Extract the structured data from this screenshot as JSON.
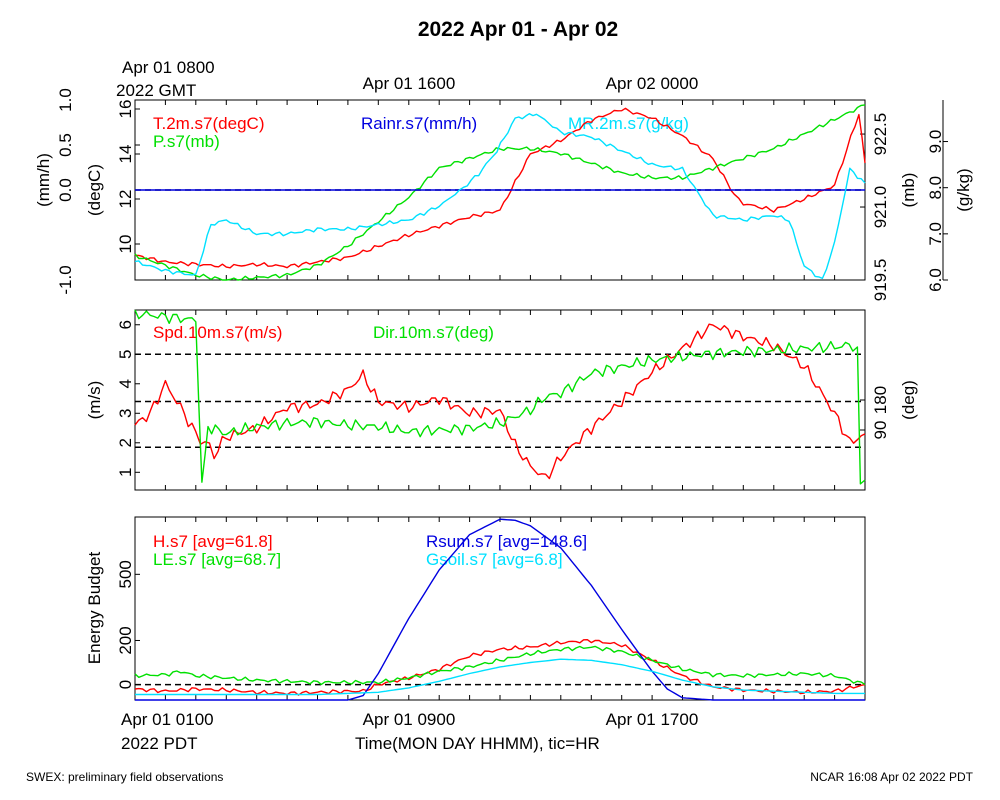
{
  "title": "2022 Apr 01 - Apr 02",
  "top_axis": {
    "labels": [
      {
        "lines": [
          "Apr 01 0800",
          "2022 GMT"
        ],
        "hour": 0
      },
      {
        "lines": [
          "Apr 01 1600"
        ],
        "hour": 8
      },
      {
        "lines": [
          "Apr 02 0000"
        ],
        "hour": 16
      }
    ]
  },
  "bottom_axis": {
    "labels": [
      {
        "lines": [
          "Apr 01 0100",
          "2022 PDT"
        ],
        "hour": 0
      },
      {
        "lines": [
          "Apr 01 0900"
        ],
        "hour": 8
      },
      {
        "lines": [
          "Apr 01 1700"
        ],
        "hour": 16
      }
    ],
    "xlabel": "Time(MON DAY HHMM), tic=HR"
  },
  "footer": {
    "left": "SWEX: preliminary field observations",
    "right": "NCAR 16:08 Apr 02 2022 PDT"
  },
  "colors": {
    "red": "#ff0000",
    "green": "#00e000",
    "blue": "#0000e0",
    "cyan": "#00e0ff",
    "black": "#000000"
  },
  "chart_data": [
    {
      "type": "line",
      "x_unit": "hours since Apr 01 0100 PDT",
      "xlim": [
        0,
        24
      ],
      "axes": {
        "rain": {
          "label": "(mm/h)",
          "ylim": [
            -1.0,
            1.0
          ],
          "ticks": [
            "-1.0",
            "0.0",
            "0.5",
            "1.0"
          ],
          "tick_values": [
            -1.0,
            0.0,
            0.5,
            1.0
          ]
        },
        "temp": {
          "label": "(degC)",
          "ylim": [
            8.4,
            16.4
          ],
          "ticks": [
            "10",
            "12",
            "14",
            "16"
          ],
          "tick_values": [
            10,
            12,
            14,
            16
          ]
        },
        "pres": {
          "label": "(mb)",
          "ylim": [
            919.5,
            923.2
          ],
          "ticks": [
            "919.5",
            "921.0",
            "922.5"
          ],
          "tick_values": [
            919.5,
            921.0,
            922.5
          ]
        },
        "mr": {
          "label": "(g/kg)",
          "ylim": [
            6.0,
            9.9
          ],
          "ticks": [
            "6.0",
            "7.0",
            "8.0",
            "9.0"
          ],
          "tick_values": [
            6.0,
            7.0,
            8.0,
            9.0
          ]
        }
      },
      "reference_lines": [
        {
          "axis": "rain",
          "value": 0.0
        }
      ],
      "series": [
        {
          "name": "T.2m.s7(degC)",
          "axis": "temp",
          "color": "#ff0000",
          "x": [
            0,
            1,
            2,
            3,
            4,
            5,
            6,
            7,
            8,
            9,
            10,
            11,
            12,
            13,
            14,
            15,
            16,
            17,
            18,
            19,
            19.7,
            20,
            21,
            22,
            23,
            23.8,
            24
          ],
          "y": [
            9.5,
            9.2,
            9.1,
            9.0,
            9.1,
            9.0,
            9.2,
            9.4,
            9.9,
            10.4,
            10.8,
            11.2,
            11.5,
            14.0,
            14.6,
            15.5,
            16.0,
            15.6,
            14.8,
            13.8,
            12.2,
            11.8,
            11.5,
            12.0,
            12.6,
            15.8,
            13.6
          ]
        },
        {
          "name": "P.s7(mb)",
          "axis": "pres",
          "color": "#00e000",
          "x": [
            0,
            1,
            2,
            3,
            4,
            5,
            6,
            7,
            8,
            9,
            10,
            11,
            12,
            13,
            14,
            15,
            16,
            17,
            18,
            19,
            20,
            21,
            22,
            23,
            24
          ],
          "y": [
            920.0,
            919.8,
            919.6,
            919.5,
            919.55,
            919.6,
            919.8,
            920.2,
            920.7,
            921.2,
            921.8,
            922.0,
            922.2,
            922.2,
            922.1,
            921.9,
            921.7,
            921.6,
            921.6,
            921.8,
            922.0,
            922.2,
            922.5,
            922.8,
            923.1
          ]
        },
        {
          "name": "Rainr.s7(mm/h)",
          "axis": "rain",
          "color": "#0000e0",
          "x": [
            0,
            24
          ],
          "y": [
            0.0,
            0.0
          ]
        },
        {
          "name": "MR.2m.s7(g/kg)",
          "axis": "mr",
          "color": "#00e0ff",
          "x": [
            0,
            1,
            2,
            2.5,
            3,
            4,
            5,
            6,
            7,
            8,
            9,
            10,
            10.8,
            11.3,
            11.9,
            12.5,
            13.2,
            14,
            15,
            16,
            17,
            18,
            19,
            20,
            21,
            21.5,
            22,
            22.6,
            23,
            23.5,
            24
          ],
          "y": [
            6.4,
            6.2,
            6.1,
            7.2,
            7.3,
            7.0,
            7.0,
            7.1,
            7.1,
            7.2,
            7.3,
            7.6,
            8.0,
            8.3,
            8.8,
            9.5,
            9.6,
            9.2,
            9.1,
            8.8,
            8.5,
            8.4,
            7.4,
            7.3,
            7.4,
            7.3,
            6.3,
            6.0,
            6.8,
            8.4,
            8.1
          ]
        }
      ]
    },
    {
      "type": "line",
      "x_unit": "hours since Apr 01 0100 PDT",
      "xlim": [
        0,
        24
      ],
      "axes": {
        "speed": {
          "label": "(m/s)",
          "ylim": [
            0.4,
            6.5
          ],
          "ticks": [
            "1",
            "2",
            "3",
            "4",
            "5",
            "6"
          ],
          "tick_values": [
            1,
            2,
            3,
            4,
            5,
            6
          ]
        },
        "dir": {
          "label": "(deg)",
          "ylim": [
            -90,
            450
          ],
          "ticks": [
            "90",
            "180"
          ],
          "tick_values": [
            90,
            180
          ]
        }
      },
      "reference_lines": [
        {
          "axis": "speed",
          "value": 5.0
        },
        {
          "axis": "speed",
          "value": 3.4
        },
        {
          "axis": "speed",
          "value": 1.85
        }
      ],
      "series": [
        {
          "name": "Spd.10m.s7(m/s)",
          "axis": "speed",
          "color": "#ff0000",
          "x": [
            0,
            0.5,
            1,
            1.5,
            2,
            2.3,
            2.6,
            3,
            4,
            5,
            6,
            7,
            7.5,
            8,
            9,
            10,
            11,
            12,
            12.5,
            13,
            13.5,
            14,
            15,
            16,
            17,
            18,
            19,
            20,
            21,
            22,
            22.5,
            23,
            23.5,
            24
          ],
          "y": [
            2.6,
            3.0,
            4.0,
            3.2,
            2.3,
            2.0,
            1.6,
            2.2,
            2.5,
            3.2,
            3.3,
            3.8,
            4.3,
            3.4,
            3.2,
            3.5,
            3.0,
            3.1,
            1.9,
            1.2,
            0.8,
            1.5,
            2.5,
            3.4,
            4.4,
            5.2,
            6.0,
            5.6,
            5.3,
            4.6,
            3.8,
            3.0,
            2.0,
            2.3
          ]
        },
        {
          "name": "Dir.10m.s7(deg)",
          "axis": "dir",
          "color": "#00e000",
          "x": [
            0,
            1,
            2,
            2.2,
            2.4,
            3,
            4,
            5,
            6,
            7,
            8,
            9,
            10,
            11,
            12,
            13,
            13.5,
            14,
            15,
            16,
            17,
            18,
            19,
            20,
            21,
            22,
            23,
            23.6,
            23.75,
            23.85,
            24
          ],
          "y": [
            440,
            430,
            420,
            -80,
            100,
            80,
            100,
            110,
            115,
            105,
            100,
            85,
            90,
            95,
            110,
            150,
            190,
            200,
            260,
            280,
            300,
            310,
            320,
            325,
            330,
            335,
            340,
            345,
            330,
            -80,
            -60
          ]
        }
      ]
    },
    {
      "type": "line",
      "x_unit": "hours since Apr 01 0100 PDT",
      "xlim": [
        0,
        24
      ],
      "axes": {
        "energy": {
          "label": "Energy Budget",
          "ylim": [
            -70,
            760
          ],
          "ticks": [
            "0",
            "200",
            "500"
          ],
          "tick_values": [
            0,
            200,
            500
          ]
        }
      },
      "reference_lines": [
        {
          "axis": "energy",
          "value": 0
        }
      ],
      "series": [
        {
          "name": "H.s7 [avg=61.8]",
          "axis": "energy",
          "color": "#ff0000",
          "x": [
            0,
            1,
            2,
            3,
            4,
            5,
            6,
            7,
            7.5,
            8,
            9,
            10,
            11,
            12,
            13,
            14,
            15,
            16,
            17,
            18,
            19,
            20,
            21,
            22,
            23,
            24
          ],
          "y": [
            -20,
            -30,
            -20,
            -25,
            -35,
            -40,
            -35,
            -30,
            -30,
            0,
            30,
            70,
            130,
            160,
            170,
            190,
            200,
            180,
            110,
            40,
            -10,
            -25,
            -30,
            -35,
            -30,
            0
          ]
        },
        {
          "name": "LE.s7 [avg=68.7]",
          "axis": "energy",
          "color": "#00e000",
          "x": [
            0,
            1,
            1.5,
            2,
            3,
            4,
            5,
            6,
            7,
            8,
            9,
            10,
            11,
            12,
            13,
            14,
            15,
            16,
            17,
            18,
            19,
            20,
            21,
            22,
            23,
            24
          ],
          "y": [
            40,
            45,
            60,
            40,
            30,
            20,
            15,
            10,
            10,
            10,
            30,
            60,
            80,
            110,
            140,
            160,
            170,
            150,
            110,
            70,
            45,
            40,
            45,
            50,
            40,
            0
          ]
        },
        {
          "name": "Rsum.s7 [avg=148.6]",
          "axis": "energy",
          "color": "#0000e0",
          "x": [
            0,
            6,
            7,
            7.5,
            8,
            9,
            10,
            11,
            12,
            12.5,
            13,
            14,
            15,
            16,
            17,
            17.5,
            18,
            19,
            24
          ],
          "y": [
            -70,
            -70,
            -70,
            -50,
            50,
            300,
            520,
            680,
            750,
            745,
            720,
            620,
            450,
            250,
            60,
            -20,
            -60,
            -70,
            -70
          ]
        },
        {
          "name": "Gsoil.s7 [avg=6.8]",
          "axis": "energy",
          "color": "#00e0ff",
          "x": [
            0,
            2,
            4,
            6,
            7,
            8,
            9,
            10,
            11,
            12,
            13,
            14,
            15,
            16,
            17,
            18,
            19,
            20,
            21,
            22,
            23,
            24
          ],
          "y": [
            -45,
            -45,
            -45,
            -45,
            -40,
            -35,
            -15,
            15,
            50,
            80,
            100,
            115,
            110,
            90,
            60,
            20,
            -10,
            -25,
            -30,
            -35,
            -40,
            -40
          ]
        }
      ]
    }
  ]
}
